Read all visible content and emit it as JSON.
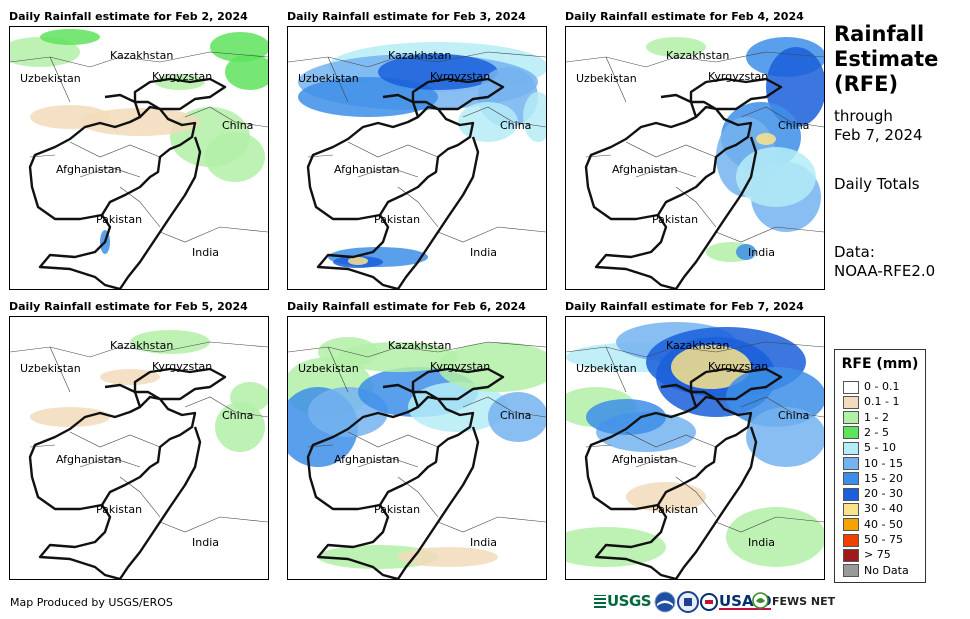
{
  "panels": [
    {
      "title": "Daily Rainfall estimate for Feb 2, 2024"
    },
    {
      "title": "Daily Rainfall estimate for Feb 3, 2024"
    },
    {
      "title": "Daily Rainfall estimate for Feb 4, 2024"
    },
    {
      "title": "Daily Rainfall estimate for Feb 5, 2024"
    },
    {
      "title": "Daily Rainfall estimate for Feb 6, 2024"
    },
    {
      "title": "Daily Rainfall estimate for Feb 7, 2024"
    }
  ],
  "map_labels": {
    "kazakhstan": "Kazakhstan",
    "uzbekistan": "Uzbekistan",
    "kyrgyzstan": "Kyrgyzstan",
    "china": "China",
    "afghanistan": "Afghanistan",
    "pakistan": "Pakistan",
    "india": "India"
  },
  "sidebar": {
    "title_line1": "Rainfall",
    "title_line2": "Estimate",
    "title_line3": "(RFE)",
    "through": "through",
    "date": "Feb 7, 2024",
    "daily_totals": "Daily Totals",
    "data_label": "Data:",
    "data_source": "NOAA-RFE2.0"
  },
  "legend": {
    "title": "RFE (mm)",
    "items": [
      {
        "label": "0 - 0.1",
        "color": "#ffffff"
      },
      {
        "label": "0.1 - 1",
        "color": "#f2dcbb"
      },
      {
        "label": "1 - 2",
        "color": "#b3f0a7"
      },
      {
        "label": "2 - 5",
        "color": "#5ee35c"
      },
      {
        "label": "5 - 10",
        "color": "#b5ecf7"
      },
      {
        "label": "10 - 15",
        "color": "#74b3f0"
      },
      {
        "label": "15 - 20",
        "color": "#3d8ee8"
      },
      {
        "label": "20 - 30",
        "color": "#1a5fdb"
      },
      {
        "label": "30 - 40",
        "color": "#fae38a"
      },
      {
        "label": "40 - 50",
        "color": "#f5a300"
      },
      {
        "label": "50 - 75",
        "color": "#f04000"
      },
      {
        "label": "> 75",
        "color": "#a0191c"
      },
      {
        "label": "No Data",
        "color": "#999999"
      }
    ]
  },
  "footer": {
    "credit": "Map Produced by USGS/EROS"
  },
  "logos": {
    "usgs": "USGS",
    "noaa": "NOAA",
    "usaid": "USAID",
    "fewsnet": "FEWS NET"
  }
}
